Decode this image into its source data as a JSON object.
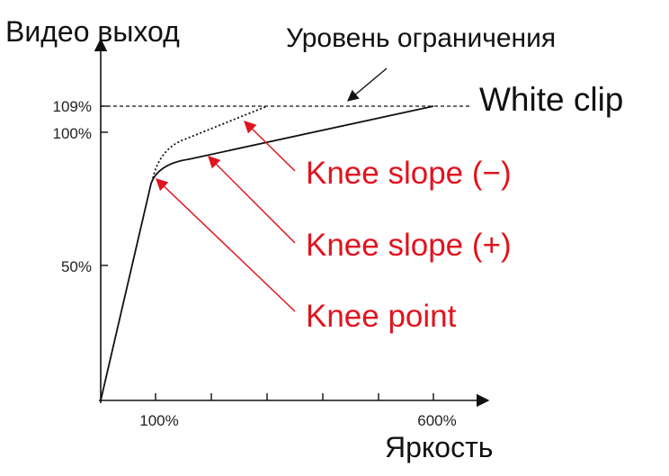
{
  "y_axis_label": "Видео выход",
  "limit_label": "Уровень ограничения",
  "white_clip_label": "White clip",
  "annotations": [
    "Knee slope (−)",
    "Knee slope (+)",
    "Knee point"
  ],
  "y_tick_labels": [
    "109%",
    "100%",
    "50%"
  ],
  "x_tick_labels": [
    "100%",
    "600%"
  ],
  "x_axis_label": "Яркость"
}
